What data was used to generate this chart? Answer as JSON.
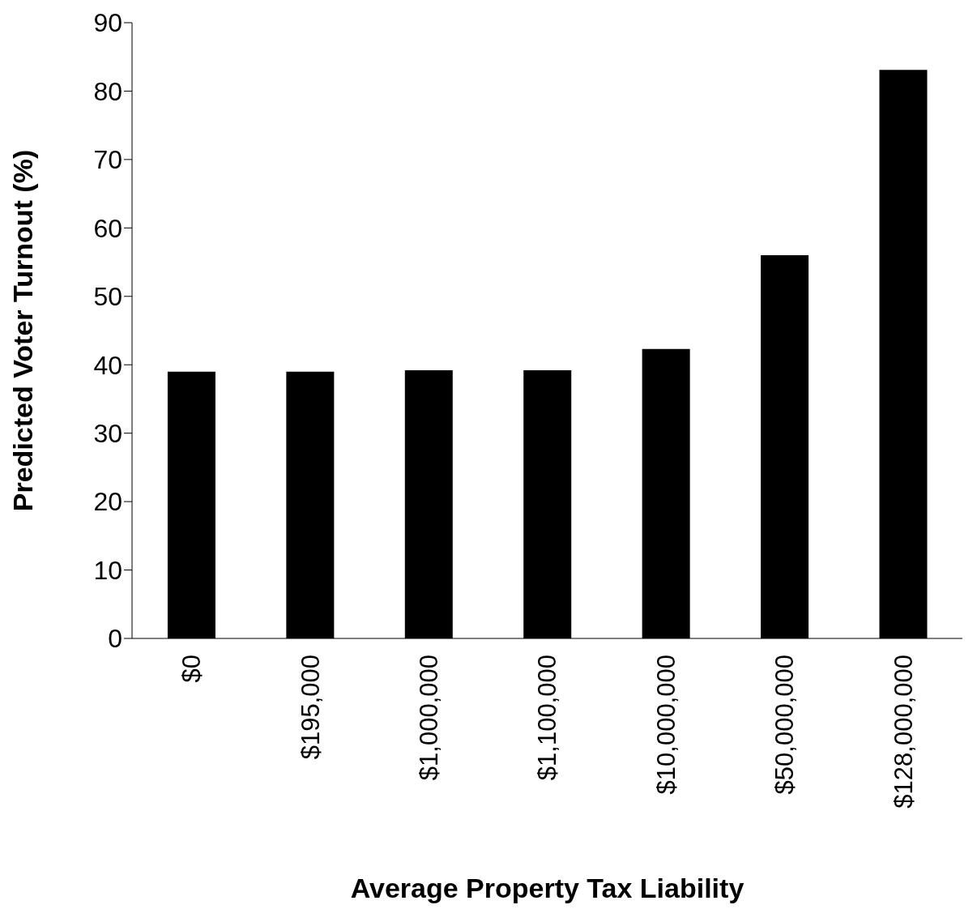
{
  "chart_data": {
    "type": "bar",
    "xlabel": "Average Property Tax Liability",
    "ylabel": "Predicted Voter Turnout (%)",
    "categories": [
      "$0",
      "$195,000",
      "$1,000,000",
      "$1,100,000",
      "$10,000,000",
      "$50,000,000",
      "$128,000,000"
    ],
    "values": [
      39,
      39,
      39.2,
      39.2,
      42.3,
      56,
      83.1
    ],
    "color": "#000000",
    "ylim": [
      0,
      90
    ],
    "yticks": [
      0,
      10,
      20,
      30,
      40,
      50,
      60,
      70,
      80,
      90
    ],
    "grid": false
  }
}
